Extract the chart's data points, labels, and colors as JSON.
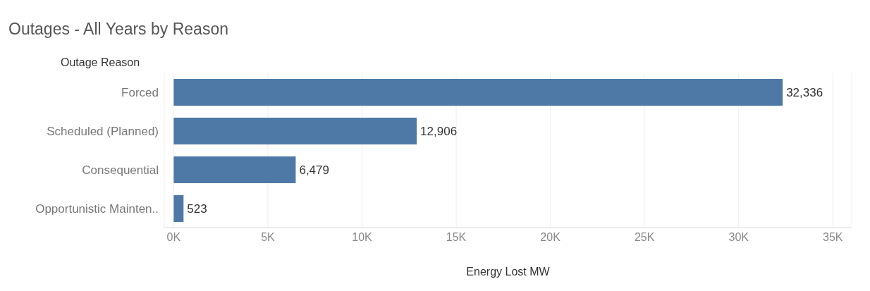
{
  "chart_data": {
    "type": "bar",
    "orientation": "horizontal",
    "title": "Outages - All Years by Reason",
    "ylabel": "Outage Reason",
    "xlabel": "Energy Lost MW",
    "categories": [
      "Forced",
      "Scheduled (Planned)",
      "Consequential",
      "Opportunistic Mainten.."
    ],
    "values": [
      32336,
      12906,
      6479,
      523
    ],
    "color": "#4e79a7",
    "value_labels": [
      "32,336",
      "12,906",
      "6,479",
      "523"
    ],
    "xlim": [
      -500,
      36000
    ],
    "xticks": [
      {
        "value": 0,
        "label": "0K"
      },
      {
        "value": 5000,
        "label": "5K"
      },
      {
        "value": 10000,
        "label": "10K"
      },
      {
        "value": 15000,
        "label": "15K"
      },
      {
        "value": 20000,
        "label": "20K"
      },
      {
        "value": 25000,
        "label": "25K"
      },
      {
        "value": 30000,
        "label": "30K"
      },
      {
        "value": 35000,
        "label": "35K"
      }
    ],
    "grid": "x"
  }
}
